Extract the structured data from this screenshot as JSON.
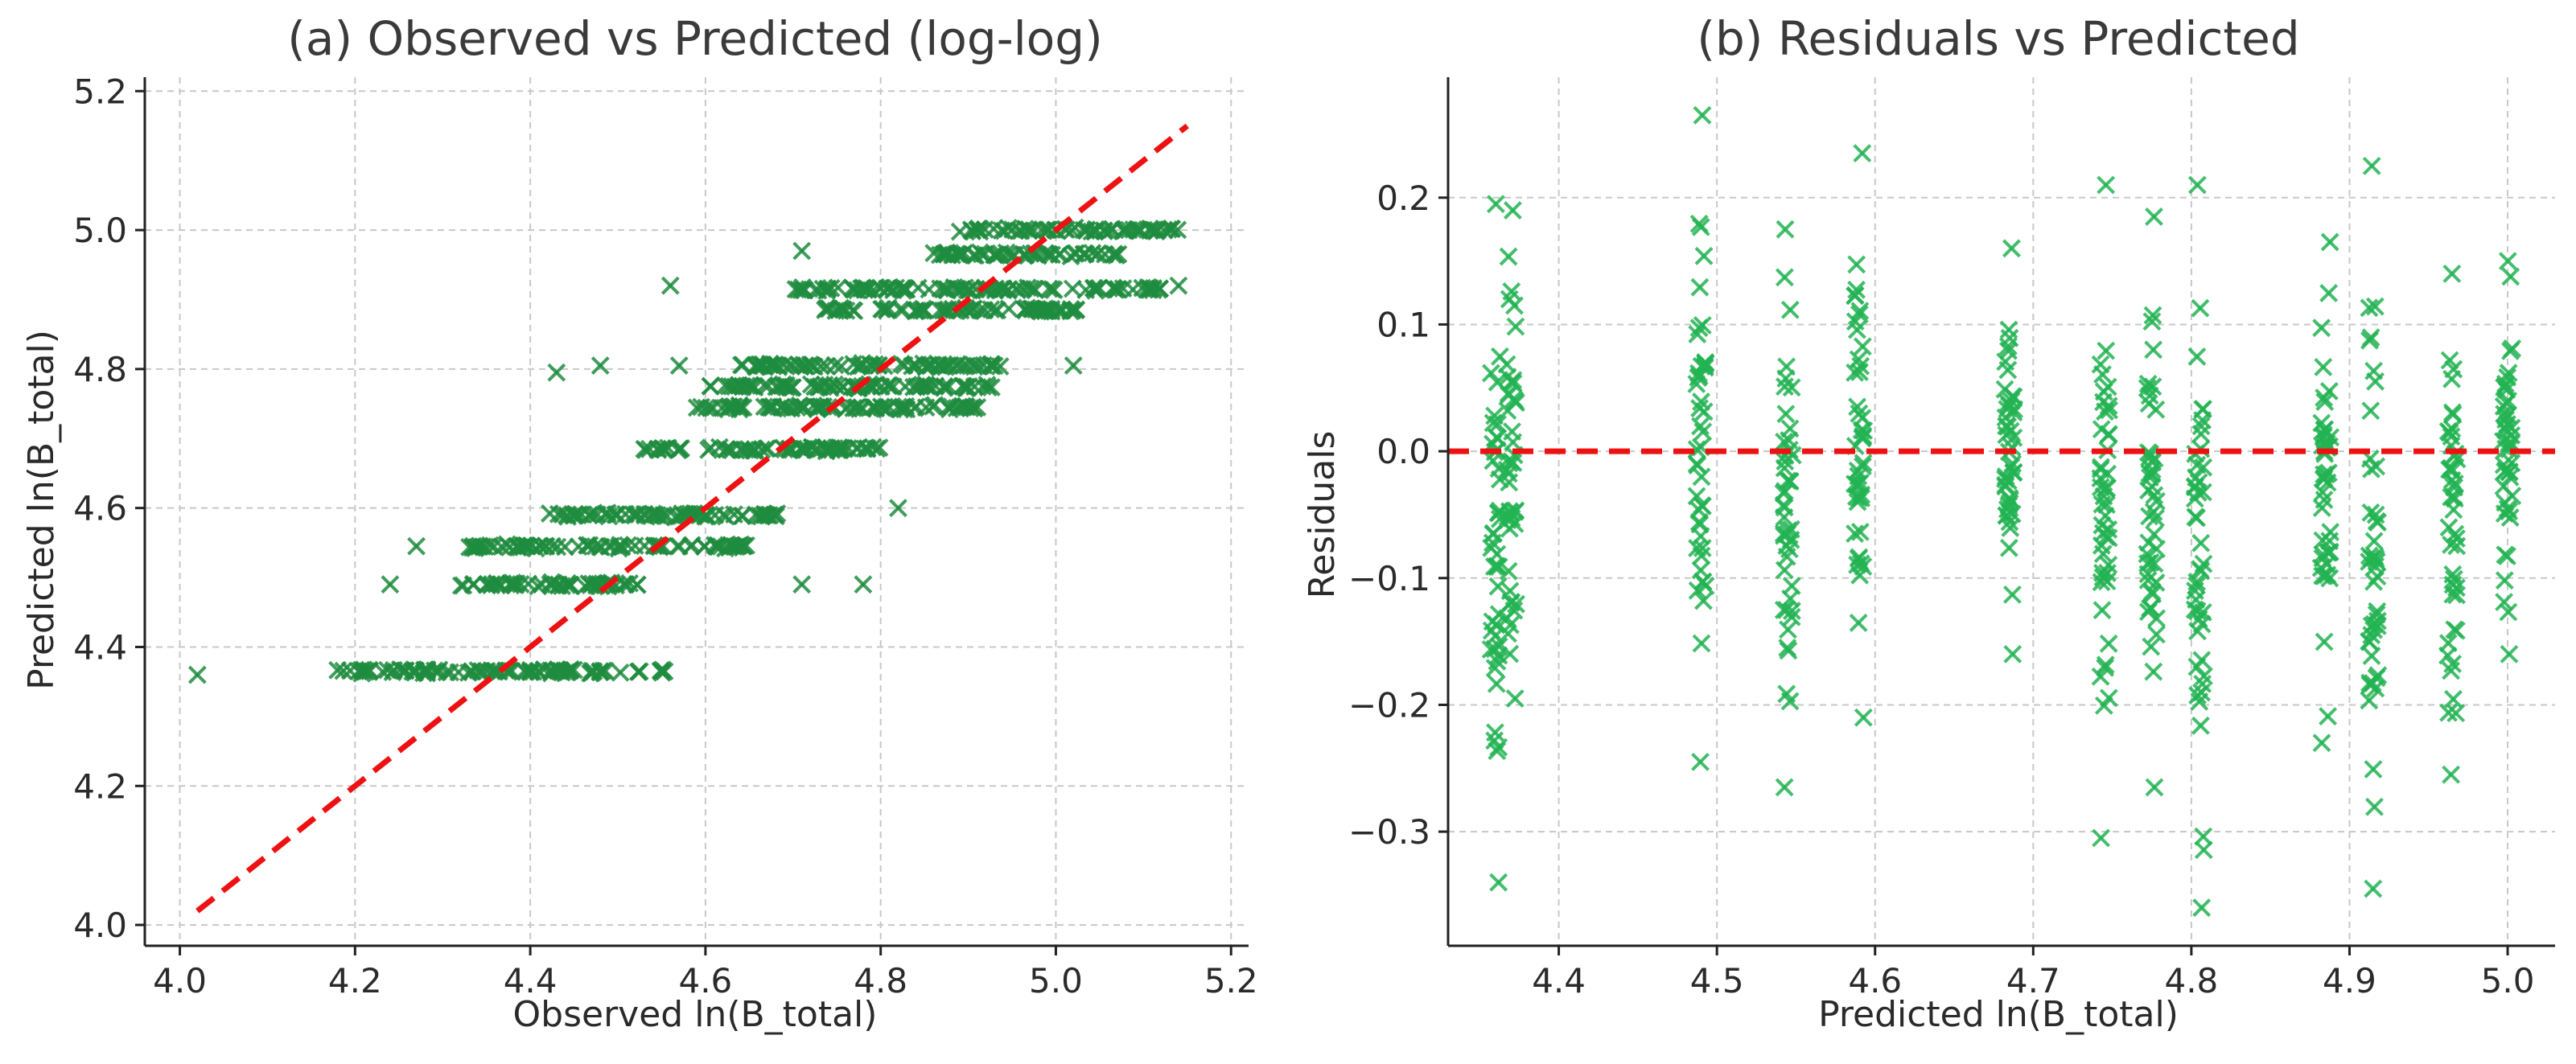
{
  "colors": {
    "marker_a": "#1e8c3e",
    "marker_b": "#22b352",
    "reference_line": "#ee1111"
  },
  "chart_data": [
    {
      "type": "scatter",
      "panel": "a",
      "title": "(a) Observed vs Predicted (log-log)",
      "xlabel": "Observed ln(B_total)",
      "ylabel": "Predicted ln(B_total)",
      "xlim": [
        3.96,
        5.22
      ],
      "ylim": [
        3.97,
        5.22
      ],
      "xticks": [
        4.0,
        4.2,
        4.4,
        4.6,
        4.8,
        5.0,
        5.2
      ],
      "yticks": [
        4.0,
        4.2,
        4.4,
        4.6,
        4.8,
        5.0,
        5.2
      ],
      "xtick_labels": [
        "4.0",
        "4.2",
        "4.4",
        "4.6",
        "4.8",
        "5.0",
        "5.2"
      ],
      "ytick_labels": [
        "4.0",
        "4.2",
        "4.4",
        "4.6",
        "4.8",
        "5.0",
        "5.2"
      ],
      "grid": true,
      "marker": "x",
      "reference_line": {
        "x": [
          4.02,
          5.15
        ],
        "y": [
          4.02,
          5.15
        ],
        "style": "dashed"
      },
      "bands": [
        {
          "predicted": 4.365,
          "observed_min": 4.17,
          "observed_max": 4.56
        },
        {
          "predicted": 4.49,
          "observed_min": 4.32,
          "observed_max": 4.53
        },
        {
          "predicted": 4.545,
          "observed_min": 4.33,
          "observed_max": 4.65
        },
        {
          "predicted": 4.59,
          "observed_min": 4.42,
          "observed_max": 4.69
        },
        {
          "predicted": 4.685,
          "observed_min": 4.52,
          "observed_max": 4.8
        },
        {
          "predicted": 4.745,
          "observed_min": 4.58,
          "observed_max": 4.92
        },
        {
          "predicted": 4.775,
          "observed_min": 4.6,
          "observed_max": 4.93
        },
        {
          "predicted": 4.805,
          "observed_min": 4.64,
          "observed_max": 4.94
        },
        {
          "predicted": 4.885,
          "observed_min": 4.73,
          "observed_max": 5.03
        },
        {
          "predicted": 4.915,
          "observed_min": 4.7,
          "observed_max": 5.13
        },
        {
          "predicted": 4.965,
          "observed_min": 4.86,
          "observed_max": 5.08
        },
        {
          "predicted": 5.0,
          "observed_min": 4.89,
          "observed_max": 5.14
        }
      ],
      "outliers": [
        {
          "x": 4.02,
          "y": 4.36
        },
        {
          "x": 4.27,
          "y": 4.545
        },
        {
          "x": 4.24,
          "y": 4.49
        },
        {
          "x": 4.56,
          "y": 4.92
        },
        {
          "x": 4.43,
          "y": 4.795
        },
        {
          "x": 4.48,
          "y": 4.805
        },
        {
          "x": 4.82,
          "y": 4.6
        },
        {
          "x": 4.71,
          "y": 4.97
        },
        {
          "x": 5.02,
          "y": 4.805
        },
        {
          "x": 4.78,
          "y": 4.49
        },
        {
          "x": 4.71,
          "y": 4.49
        },
        {
          "x": 4.57,
          "y": 4.805
        },
        {
          "x": 5.14,
          "y": 4.92
        }
      ]
    },
    {
      "type": "scatter",
      "panel": "b",
      "title": "(b) Residuals vs Predicted",
      "xlabel": "Predicted ln(B_total)",
      "ylabel": "Residuals",
      "xlim": [
        4.33,
        5.03
      ],
      "ylim": [
        -0.39,
        0.295
      ],
      "xticks": [
        4.4,
        4.5,
        4.6,
        4.7,
        4.8,
        4.9,
        5.0
      ],
      "yticks": [
        -0.3,
        -0.2,
        -0.1,
        0.0,
        0.1,
        0.2
      ],
      "xtick_labels": [
        "4.4",
        "4.5",
        "4.6",
        "4.7",
        "4.8",
        "4.9",
        "5.0"
      ],
      "ytick_labels": [
        "−0.3",
        "−0.2",
        "−0.1",
        "0.0",
        "0.1",
        "0.2"
      ],
      "grid": true,
      "marker": "x",
      "reference_line": {
        "y": 0.0,
        "style": "dashed"
      },
      "columns": [
        {
          "predicted": 4.36,
          "min": -0.34,
          "max": 0.195
        },
        {
          "predicted": 4.37,
          "min": -0.195,
          "max": 0.19
        },
        {
          "predicted": 4.49,
          "min": -0.245,
          "max": 0.265
        },
        {
          "predicted": 4.545,
          "min": -0.265,
          "max": 0.175
        },
        {
          "predicted": 4.59,
          "min": -0.21,
          "max": 0.235
        },
        {
          "predicted": 4.685,
          "min": -0.16,
          "max": 0.16
        },
        {
          "predicted": 4.745,
          "min": -0.305,
          "max": 0.21
        },
        {
          "predicted": 4.775,
          "min": -0.265,
          "max": 0.185
        },
        {
          "predicted": 4.805,
          "min": -0.36,
          "max": 0.21
        },
        {
          "predicted": 4.885,
          "min": -0.23,
          "max": 0.165
        },
        {
          "predicted": 4.915,
          "min": -0.345,
          "max": 0.225
        },
        {
          "predicted": 4.965,
          "min": -0.255,
          "max": 0.14
        },
        {
          "predicted": 5.0,
          "min": -0.16,
          "max": 0.15
        }
      ]
    }
  ]
}
